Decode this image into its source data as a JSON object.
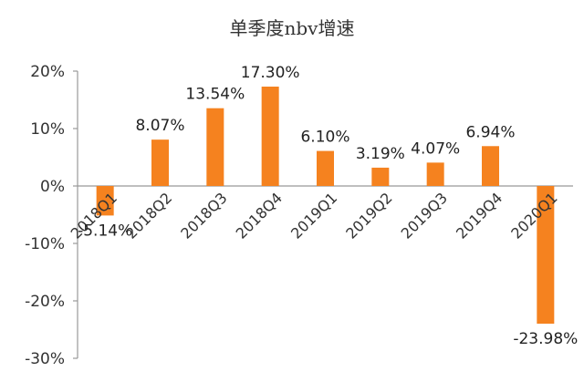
{
  "chart_data": {
    "type": "bar",
    "title": "单季度nbv增速",
    "xlabel": "",
    "ylabel": "",
    "ylim": [
      -30,
      20
    ],
    "yticks": [
      20,
      10,
      0,
      -10,
      -20,
      -30
    ],
    "ytick_labels": [
      "20%",
      "10%",
      "0%",
      "-10%",
      "-20%",
      "-30%"
    ],
    "categories": [
      "2018Q1",
      "2018Q2",
      "2018Q3",
      "2018Q4",
      "2019Q1",
      "2019Q2",
      "2019Q3",
      "2019Q4",
      "2020Q1"
    ],
    "values": [
      -5.14,
      8.07,
      13.54,
      17.3,
      6.1,
      3.19,
      4.07,
      6.94,
      -23.98
    ],
    "value_labels": [
      "-5.14%",
      "8.07%",
      "13.54%",
      "17.30%",
      "6.10%",
      "3.19%",
      "4.07%",
      "6.94%",
      "-23.98%"
    ],
    "grid": false,
    "legend": "none",
    "bar_color": "#F5821F",
    "axis_color": "#999999"
  }
}
